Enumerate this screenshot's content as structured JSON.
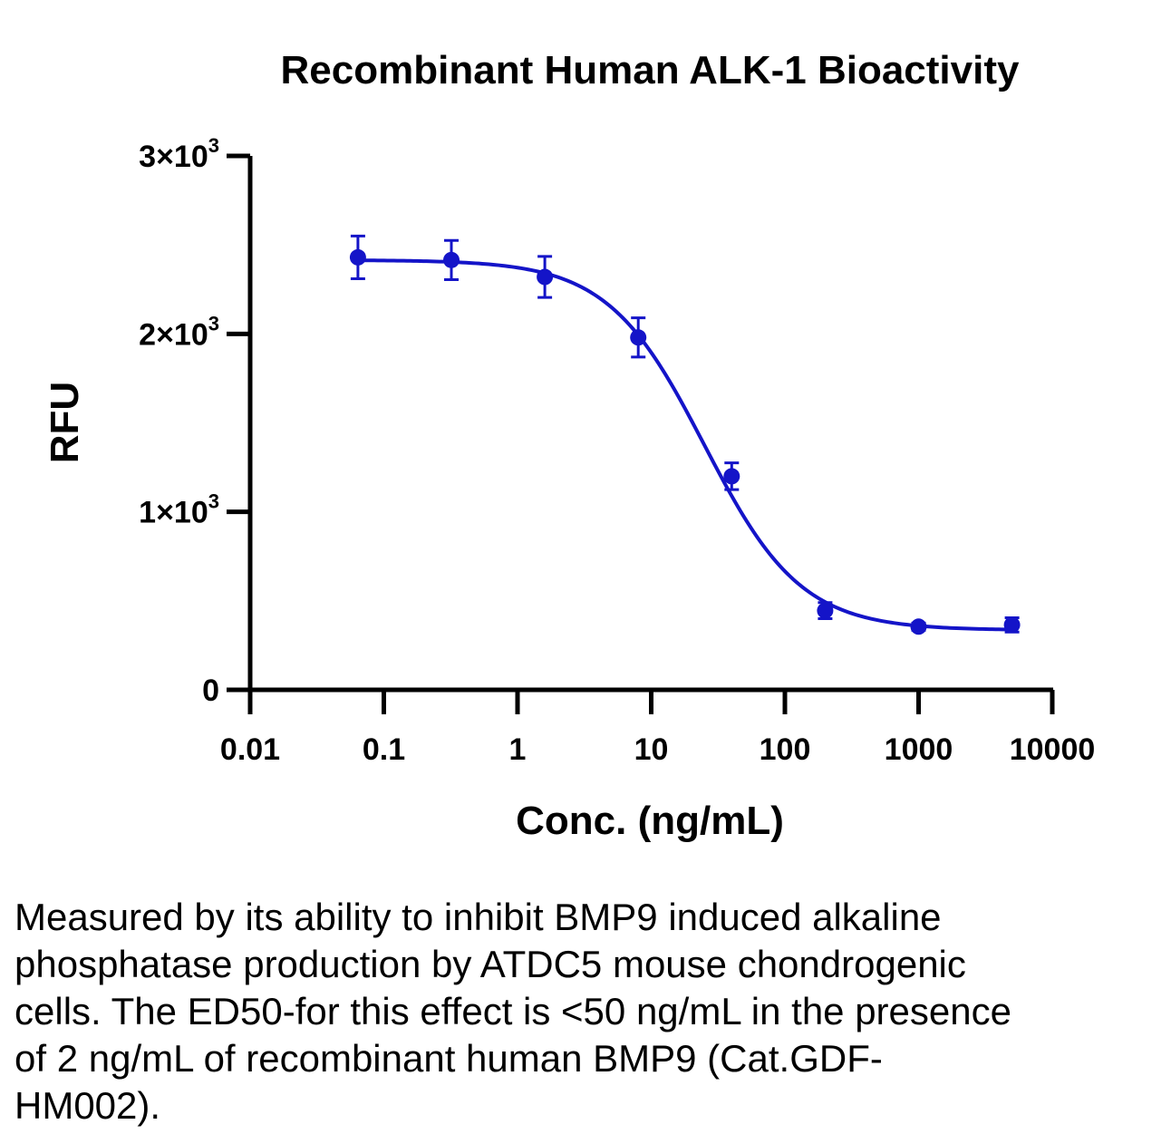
{
  "chart_data": {
    "type": "scatter",
    "title": "Recombinant Human ALK-1 Bioactivity",
    "xlabel": "Conc. (ng/mL)",
    "ylabel": "RFU",
    "xscale": "log",
    "xlim": [
      0.01,
      10000
    ],
    "ylim": [
      0,
      3000
    ],
    "x_ticks": [
      "0.01",
      "0.1",
      "1",
      "10",
      "100",
      "1000",
      "10000"
    ],
    "y_ticks": [
      {
        "value": 0,
        "mant": "0",
        "exp": ""
      },
      {
        "value": 1000,
        "mant": "1×10",
        "exp": "3"
      },
      {
        "value": 2000,
        "mant": "2×10",
        "exp": "3"
      },
      {
        "value": 3000,
        "mant": "3×10",
        "exp": "3"
      }
    ],
    "series": [
      {
        "x": [
          0.064,
          0.32,
          1.6,
          8,
          40,
          200,
          1000,
          5000
        ],
        "y": [
          2430,
          2415,
          2320,
          1980,
          1200,
          445,
          355,
          365
        ],
        "error": [
          120,
          110,
          115,
          110,
          75,
          45,
          20,
          40
        ]
      }
    ],
    "fit": {
      "bottom": 335,
      "top": 2415,
      "ec50": 25,
      "hill": 1.2,
      "x_range": [
        0.064,
        5000
      ]
    },
    "color": "#1414c8",
    "grid": false
  },
  "caption": "Measured by its ability to inhibit BMP9 induced alkaline phosphatase production by ATDC5 mouse chondrogenic cells. The ED50-for this effect is <50 ng/mL in the presence of 2 ng/mL of recombinant human BMP9 (Cat.GDF-HM002)."
}
